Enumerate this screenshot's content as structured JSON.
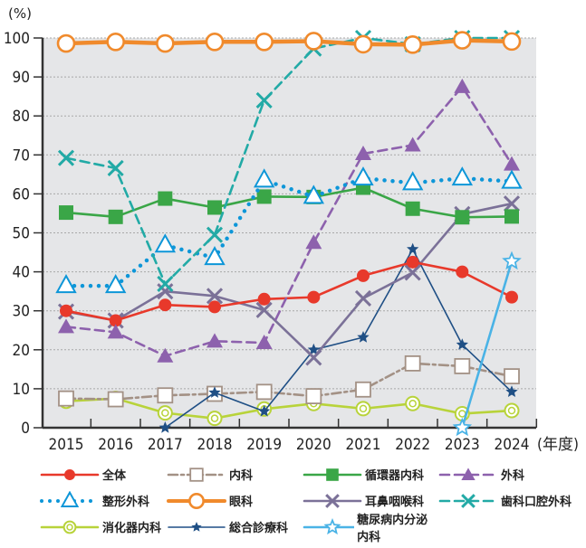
{
  "chart_data": {
    "type": "line",
    "title": "",
    "ylabel": "(%)",
    "xlabel": "(年度)",
    "ylim": [
      0,
      100
    ],
    "yticks": [
      0,
      10,
      20,
      30,
      40,
      50,
      60,
      70,
      80,
      90,
      100
    ],
    "grid": true,
    "legend_position": "bottom",
    "categories": [
      "2015",
      "2016",
      "2017",
      "2018",
      "2019",
      "2020",
      "2021",
      "2022",
      "2023",
      "2024"
    ],
    "series": [
      {
        "name": "全体",
        "color": "#e8392b",
        "style": "solid",
        "marker": "dot",
        "values": [
          30.0,
          27.5,
          31.5,
          31.0,
          33.0,
          33.5,
          39.0,
          42.5,
          40.0,
          33.5
        ]
      },
      {
        "name": "内科",
        "color": "#a39185",
        "style": "dashdot",
        "marker": "square-open",
        "values": [
          7.5,
          7.3,
          8.3,
          8.7,
          9.2,
          8.1,
          9.8,
          16.5,
          15.8,
          13.2
        ]
      },
      {
        "name": "循環器内科",
        "color": "#3aa647",
        "style": "solid",
        "marker": "square",
        "values": [
          55.2,
          54.1,
          58.8,
          56.5,
          59.3,
          59.2,
          61.6,
          56.2,
          54.0,
          54.2
        ]
      },
      {
        "name": "外科",
        "color": "#8d61ad",
        "style": "dashed",
        "marker": "triangle",
        "values": [
          25.9,
          24.5,
          18.4,
          22.2,
          21.8,
          47.5,
          70.3,
          72.5,
          87.5,
          67.6
        ]
      },
      {
        "name": "整形外科",
        "color": "#0d96d8",
        "style": "dotted",
        "marker": "triangle-open",
        "values": [
          36.4,
          36.4,
          46.8,
          43.6,
          63.5,
          59.3,
          64.0,
          62.8,
          64.0,
          63.2
        ]
      },
      {
        "name": "眼科",
        "color": "#f08a2c",
        "style": "solid-thick",
        "marker": "circle-open",
        "values": [
          98.6,
          99.0,
          98.6,
          99.0,
          99.0,
          99.2,
          98.4,
          98.3,
          99.4,
          99.1
        ]
      },
      {
        "name": "耳鼻咽喉科",
        "color": "#7b7198",
        "style": "solid",
        "marker": "x",
        "values": [
          29.8,
          27.5,
          35.0,
          33.8,
          30.2,
          18.0,
          33.2,
          39.8,
          54.8,
          57.5
        ]
      },
      {
        "name": "歯科口腔外科",
        "color": "#22aaa6",
        "style": "dashed",
        "marker": "x",
        "values": [
          69.2,
          66.6,
          36.9,
          49.5,
          84.0,
          97.3,
          100.0,
          98.4,
          100.0,
          100.0
        ]
      },
      {
        "name": "消化器内科",
        "color": "#b8d33a",
        "style": "solid",
        "marker": "double-circle",
        "values": [
          6.8,
          7.5,
          3.8,
          2.4,
          4.8,
          6.2,
          4.9,
          6.2,
          3.6,
          4.4
        ]
      },
      {
        "name": "総合診療科",
        "color": "#1f4f85",
        "style": "solid-thin",
        "marker": "star",
        "values": [
          null,
          null,
          0.0,
          9.0,
          4.2,
          20.0,
          23.2,
          45.8,
          21.3,
          9.2
        ]
      },
      {
        "name": "糖尿病内分泌内科",
        "color": "#4ab3e6",
        "style": "solid",
        "marker": "star-open",
        "values": [
          null,
          null,
          null,
          null,
          null,
          null,
          null,
          null,
          0.0,
          42.7
        ]
      }
    ]
  },
  "legend": {
    "rows": [
      [
        0,
        1,
        2,
        3
      ],
      [
        4,
        5,
        6,
        7
      ],
      [
        8,
        9,
        10
      ]
    ]
  }
}
